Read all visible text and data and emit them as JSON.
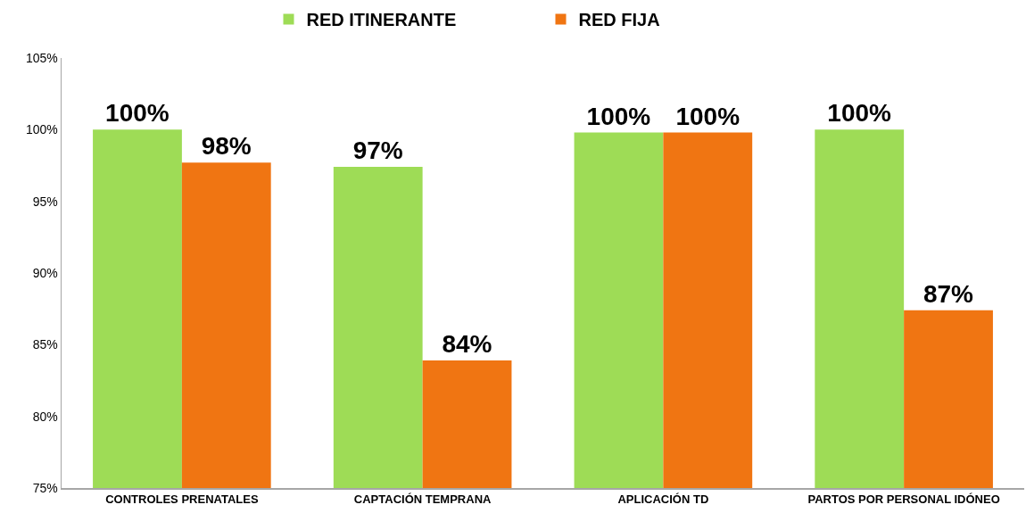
{
  "chart_data": {
    "type": "bar",
    "categories": [
      "CONTROLES PRENATALES",
      "CAPTACIÓN TEMPRANA",
      "APLICACIÓN TD",
      "PARTOS POR PERSONAL IDÓNEO"
    ],
    "series": [
      {
        "name": "RED ITINERANTE",
        "color": "#9edc56",
        "values": [
          100,
          97.4,
          99.8,
          100
        ],
        "value_labels": [
          "100%",
          "97%",
          "100%",
          "100%"
        ]
      },
      {
        "name": "RED FIJA",
        "color": "#f07512",
        "values": [
          97.7,
          83.9,
          99.8,
          87.4
        ],
        "value_labels": [
          "98%",
          "84%",
          "100%",
          "87%"
        ]
      }
    ],
    "ylim": [
      75,
      105
    ],
    "yticks": [
      {
        "value": 75,
        "label": "75%"
      },
      {
        "value": 80,
        "label": "80%"
      },
      {
        "value": 85,
        "label": "85%"
      },
      {
        "value": 90,
        "label": "90%"
      },
      {
        "value": 95,
        "label": "95%"
      },
      {
        "value": 100,
        "label": "100%"
      },
      {
        "value": 105,
        "label": "105%"
      }
    ],
    "grid": false,
    "legend": "top"
  }
}
